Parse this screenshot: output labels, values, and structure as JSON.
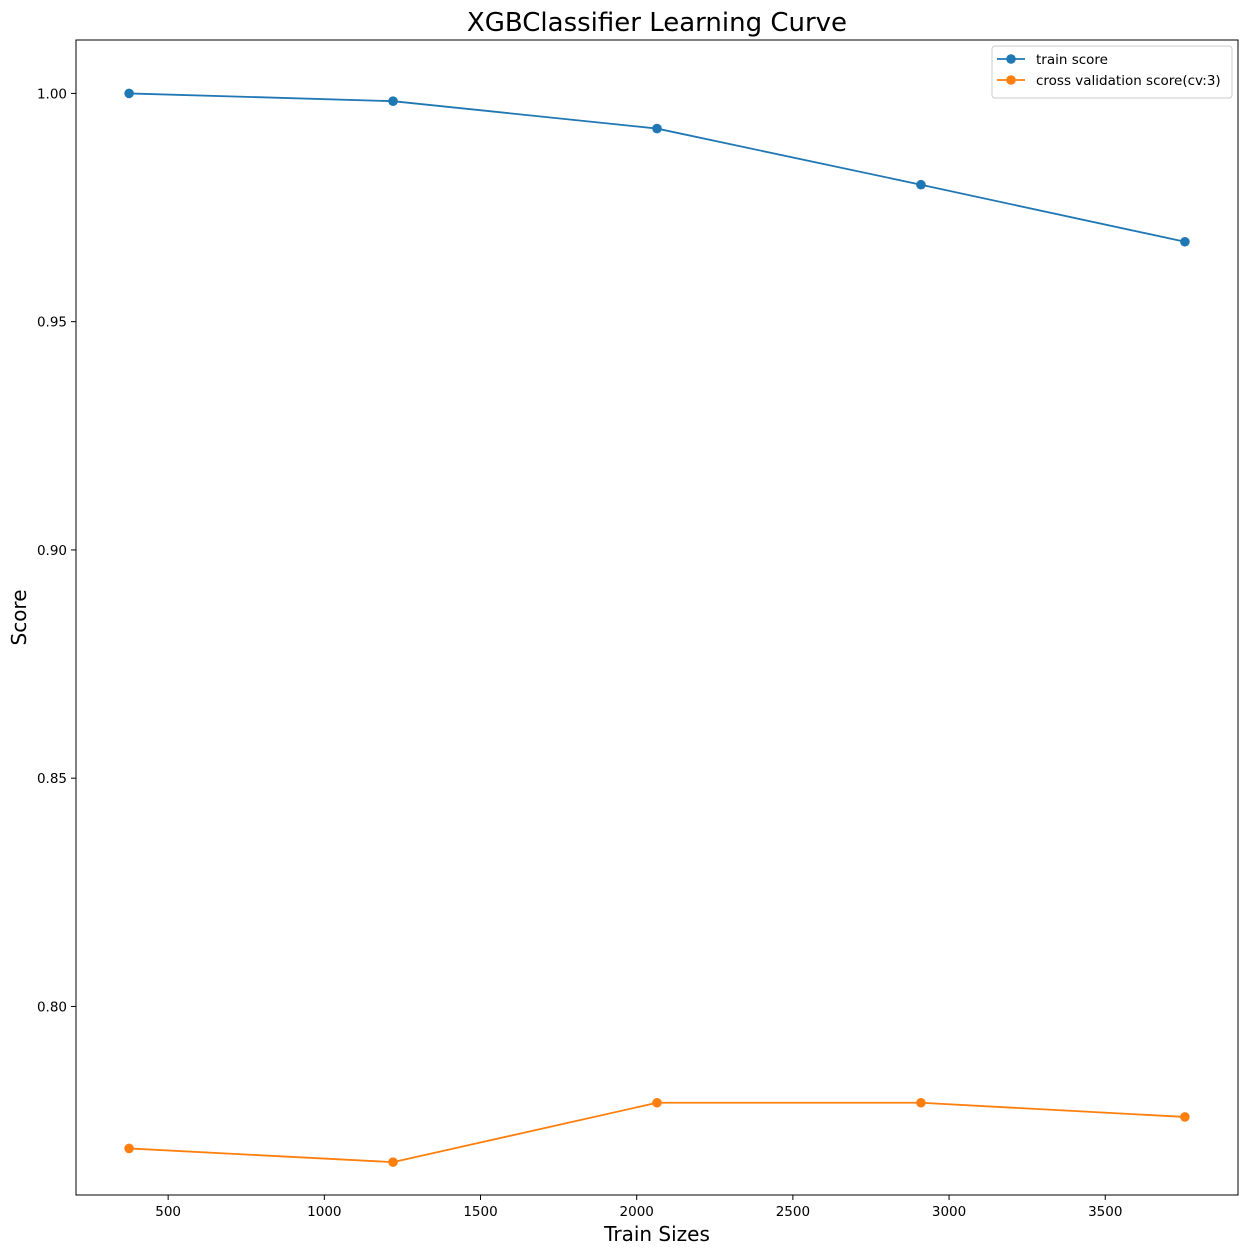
{
  "chart_data": {
    "type": "line",
    "title": "XGBClassifier Learning Curve",
    "xlabel": "Train Sizes",
    "ylabel": "Score",
    "xlim": [
      205,
      3925
    ],
    "ylim": [
      0.7587,
      1.0117
    ],
    "xticks": [
      500,
      1000,
      1500,
      2000,
      2500,
      3000,
      3500
    ],
    "xtick_labels": [
      "500",
      "1000",
      "1500",
      "2000",
      "2500",
      "3000",
      "3500"
    ],
    "yticks": [
      0.8,
      0.85,
      0.9,
      0.95,
      1.0
    ],
    "ytick_labels": [
      "0.80",
      "0.85",
      "0.90",
      "0.95",
      "1.00"
    ],
    "grid": false,
    "legend_position": "top-right",
    "x": [
      375,
      1220,
      2065,
      2910,
      3755
    ],
    "series": [
      {
        "name": "train score",
        "color": "#1f77b4",
        "marker": "circle",
        "values": [
          1.0,
          0.9983,
          0.9923,
          0.98,
          0.9675
        ]
      },
      {
        "name": "cross validation score(cv:3)",
        "color": "#ff7f0e",
        "marker": "circle",
        "values": [
          0.7689,
          0.7659,
          0.7789,
          0.7789,
          0.7758
        ]
      }
    ]
  }
}
